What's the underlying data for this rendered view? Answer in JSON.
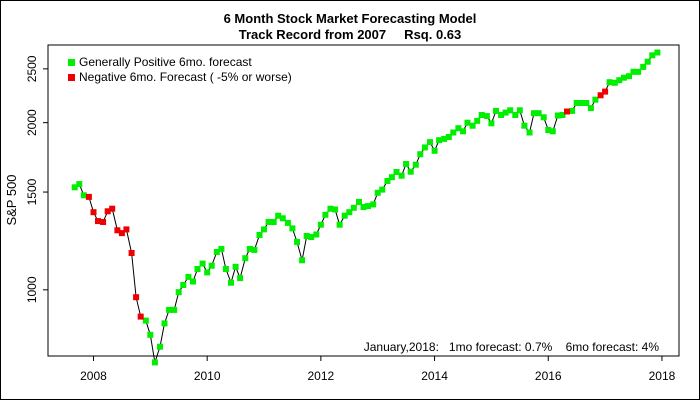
{
  "chart_data": {
    "type": "scatter",
    "title": "6 Month Stock Market Forecasting Model",
    "subtitle": "Track Record from 2007     Rsq. 0.63",
    "xlabel": "",
    "ylabel": "S&P 500",
    "y_scale": "log",
    "xlim": [
      2007.2,
      2018.3
    ],
    "ylim": [
      760,
      2760
    ],
    "x_ticks": [
      2008,
      2010,
      2012,
      2014,
      2016,
      2018
    ],
    "x_tick_labels": [
      "2008",
      "2010",
      "2012",
      "2014",
      "2016",
      "2018"
    ],
    "y_ticks": [
      1000,
      1500,
      2000,
      2500
    ],
    "y_tick_labels": [
      "1000",
      "1500",
      "2000",
      "2500"
    ],
    "grid": false,
    "legend_position": "top-left",
    "colors": {
      "positive": "#00ee00",
      "negative": "#ee0000",
      "line": "#000000"
    },
    "legend": [
      {
        "label": "Generally Positive 6mo. forecast",
        "color": "#00ee00"
      },
      {
        "label": "Negative 6mo. Forecast ( -5% or worse)",
        "color": "#ee0000"
      }
    ],
    "annotation": "January,2018:   1mo forecast: 0.7%    6mo forecast: 4%",
    "series": [
      {
        "name": "Generally Positive 6mo. forecast",
        "color": "#00ee00",
        "points": [
          [
            2007.67,
            1530
          ],
          [
            2007.75,
            1550
          ],
          [
            2007.83,
            1480
          ],
          [
            2008.92,
            880
          ],
          [
            2009.0,
            830
          ],
          [
            2009.08,
            740
          ],
          [
            2009.17,
            790
          ],
          [
            2009.25,
            870
          ],
          [
            2009.33,
            920
          ],
          [
            2009.42,
            920
          ],
          [
            2009.5,
            990
          ],
          [
            2009.58,
            1020
          ],
          [
            2009.67,
            1055
          ],
          [
            2009.75,
            1035
          ],
          [
            2009.83,
            1090
          ],
          [
            2009.92,
            1115
          ],
          [
            2010.0,
            1075
          ],
          [
            2010.08,
            1105
          ],
          [
            2010.17,
            1170
          ],
          [
            2010.25,
            1185
          ],
          [
            2010.33,
            1090
          ],
          [
            2010.42,
            1030
          ],
          [
            2010.5,
            1100
          ],
          [
            2010.58,
            1050
          ],
          [
            2010.67,
            1140
          ],
          [
            2010.75,
            1185
          ],
          [
            2010.83,
            1180
          ],
          [
            2010.92,
            1255
          ],
          [
            2011.0,
            1285
          ],
          [
            2011.08,
            1325
          ],
          [
            2011.17,
            1325
          ],
          [
            2011.25,
            1360
          ],
          [
            2011.33,
            1345
          ],
          [
            2011.42,
            1320
          ],
          [
            2011.5,
            1290
          ],
          [
            2011.58,
            1220
          ],
          [
            2011.67,
            1130
          ],
          [
            2011.75,
            1250
          ],
          [
            2011.83,
            1245
          ],
          [
            2011.92,
            1258
          ],
          [
            2012.0,
            1310
          ],
          [
            2012.08,
            1365
          ],
          [
            2012.17,
            1400
          ],
          [
            2012.25,
            1395
          ],
          [
            2012.33,
            1310
          ],
          [
            2012.42,
            1360
          ],
          [
            2012.5,
            1380
          ],
          [
            2012.58,
            1405
          ],
          [
            2012.67,
            1440
          ],
          [
            2012.75,
            1410
          ],
          [
            2012.83,
            1415
          ],
          [
            2012.92,
            1425
          ],
          [
            2013.0,
            1495
          ],
          [
            2013.08,
            1515
          ],
          [
            2013.17,
            1570
          ],
          [
            2013.25,
            1595
          ],
          [
            2013.33,
            1630
          ],
          [
            2013.42,
            1605
          ],
          [
            2013.5,
            1685
          ],
          [
            2013.58,
            1632
          ],
          [
            2013.67,
            1680
          ],
          [
            2013.75,
            1755
          ],
          [
            2013.83,
            1805
          ],
          [
            2013.92,
            1845
          ],
          [
            2014.0,
            1780
          ],
          [
            2014.08,
            1860
          ],
          [
            2014.17,
            1870
          ],
          [
            2014.25,
            1885
          ],
          [
            2014.33,
            1920
          ],
          [
            2014.42,
            1955
          ],
          [
            2014.5,
            1930
          ],
          [
            2014.58,
            2000
          ],
          [
            2014.67,
            1975
          ],
          [
            2014.75,
            2015
          ],
          [
            2014.83,
            2065
          ],
          [
            2014.92,
            2055
          ],
          [
            2015.0,
            1995
          ],
          [
            2015.08,
            2100
          ],
          [
            2015.17,
            2065
          ],
          [
            2015.25,
            2085
          ],
          [
            2015.33,
            2105
          ],
          [
            2015.42,
            2065
          ],
          [
            2015.5,
            2105
          ],
          [
            2015.58,
            1975
          ],
          [
            2015.67,
            1920
          ],
          [
            2015.75,
            2080
          ],
          [
            2015.83,
            2080
          ],
          [
            2015.92,
            2045
          ],
          [
            2016.0,
            1940
          ],
          [
            2016.08,
            1930
          ],
          [
            2016.17,
            2060
          ],
          [
            2016.25,
            2065
          ],
          [
            2016.42,
            2100
          ],
          [
            2016.5,
            2170
          ],
          [
            2016.58,
            2170
          ],
          [
            2016.67,
            2170
          ],
          [
            2016.75,
            2125
          ],
          [
            2016.83,
            2200
          ],
          [
            2017.08,
            2365
          ],
          [
            2017.17,
            2360
          ],
          [
            2017.25,
            2385
          ],
          [
            2017.33,
            2410
          ],
          [
            2017.42,
            2425
          ],
          [
            2017.5,
            2470
          ],
          [
            2017.58,
            2470
          ],
          [
            2017.67,
            2520
          ],
          [
            2017.75,
            2575
          ],
          [
            2017.83,
            2645
          ],
          [
            2017.92,
            2675
          ]
        ]
      },
      {
        "name": "Negative 6mo. Forecast ( -5% or worse)",
        "color": "#ee0000",
        "points": [
          [
            2007.92,
            1470
          ],
          [
            2008.0,
            1380
          ],
          [
            2008.08,
            1330
          ],
          [
            2008.17,
            1325
          ],
          [
            2008.25,
            1385
          ],
          [
            2008.33,
            1400
          ],
          [
            2008.42,
            1280
          ],
          [
            2008.5,
            1265
          ],
          [
            2008.58,
            1285
          ],
          [
            2008.67,
            1165
          ],
          [
            2008.75,
            970
          ],
          [
            2008.83,
            895
          ],
          [
            2016.33,
            2095
          ],
          [
            2016.92,
            2240
          ],
          [
            2017.0,
            2275
          ]
        ]
      }
    ]
  }
}
